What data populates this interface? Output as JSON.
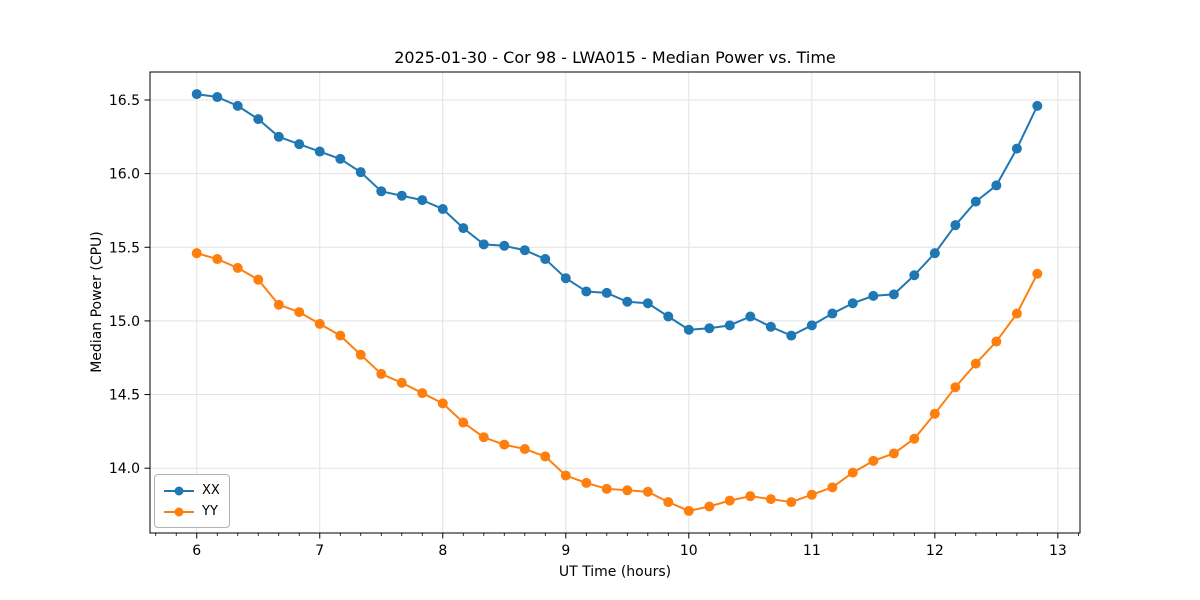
{
  "title": "2025-01-30 - Cor 98 - LWA015 - Median Power vs. Time",
  "chart_data": {
    "type": "line",
    "title": "2025-01-30 - Cor 98 - LWA015 - Median Power vs. Time",
    "xlabel": "UT Time (hours)",
    "ylabel": "Median Power (CPU)",
    "xlim": [
      5.62,
      13.18
    ],
    "ylim": [
      13.56,
      16.69
    ],
    "xticks": [
      6,
      7,
      8,
      9,
      10,
      11,
      12,
      13
    ],
    "xtick_labels": [
      "6",
      "7",
      "8",
      "9",
      "10",
      "11",
      "12",
      "13"
    ],
    "yticks": [
      14.0,
      14.5,
      15.0,
      15.5,
      16.0,
      16.5
    ],
    "ytick_labels": [
      "14.0",
      "14.5",
      "15.0",
      "15.5",
      "16.0",
      "16.5"
    ],
    "x_minor_divisions": 6,
    "grid": true,
    "legend_position": "lower-left",
    "x": [
      6.0,
      6.167,
      6.333,
      6.5,
      6.667,
      6.833,
      7.0,
      7.167,
      7.333,
      7.5,
      7.667,
      7.833,
      8.0,
      8.167,
      8.333,
      8.5,
      8.667,
      8.833,
      9.0,
      9.167,
      9.333,
      9.5,
      9.667,
      9.833,
      10.0,
      10.167,
      10.333,
      10.5,
      10.667,
      10.833,
      11.0,
      11.167,
      11.333,
      11.5,
      11.667,
      11.833,
      12.0,
      12.167,
      12.333,
      12.5,
      12.667,
      12.833
    ],
    "series": [
      {
        "name": "XX",
        "color": "#1f77b4",
        "values": [
          16.54,
          16.52,
          16.46,
          16.37,
          16.25,
          16.2,
          16.15,
          16.1,
          16.01,
          15.88,
          15.85,
          15.82,
          15.76,
          15.63,
          15.52,
          15.51,
          15.48,
          15.42,
          15.29,
          15.2,
          15.19,
          15.13,
          15.12,
          15.03,
          14.94,
          14.95,
          14.97,
          15.03,
          14.96,
          14.9,
          14.97,
          15.05,
          15.12,
          15.17,
          15.18,
          15.31,
          15.46,
          15.65,
          15.81,
          15.92,
          16.17,
          16.46
        ]
      },
      {
        "name": "YY",
        "color": "#ff7f0e",
        "values": [
          15.46,
          15.42,
          15.36,
          15.28,
          15.11,
          15.06,
          14.98,
          14.9,
          14.77,
          14.64,
          14.58,
          14.51,
          14.44,
          14.31,
          14.21,
          14.16,
          14.13,
          14.08,
          13.95,
          13.9,
          13.86,
          13.85,
          13.84,
          13.77,
          13.71,
          13.74,
          13.78,
          13.81,
          13.79,
          13.77,
          13.82,
          13.87,
          13.97,
          14.05,
          14.1,
          14.2,
          14.37,
          14.55,
          14.71,
          14.86,
          15.05,
          15.32
        ]
      }
    ],
    "colors": {
      "grid": "#e3e3e3",
      "spine": "#000000",
      "text": "#000000",
      "background": "#ffffff"
    }
  }
}
